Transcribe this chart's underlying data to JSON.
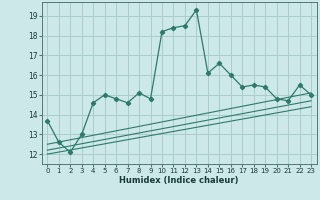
{
  "xlabel": "Humidex (Indice chaleur)",
  "background_color": "#cce8e8",
  "grid_color": "#aacccc",
  "line_color": "#2d7a6a",
  "xlim": [
    -0.5,
    23.5
  ],
  "ylim": [
    11.5,
    19.7
  ],
  "xticks": [
    0,
    1,
    2,
    3,
    4,
    5,
    6,
    7,
    8,
    9,
    10,
    11,
    12,
    13,
    14,
    15,
    16,
    17,
    18,
    19,
    20,
    21,
    22,
    23
  ],
  "yticks": [
    12,
    13,
    14,
    15,
    16,
    17,
    18,
    19
  ],
  "series1_x": [
    0,
    1,
    2,
    3,
    4,
    5,
    6,
    7,
    8,
    9,
    10,
    11,
    12,
    13,
    14,
    15,
    16,
    17,
    18,
    19,
    20,
    21,
    22,
    23
  ],
  "series1_y": [
    13.7,
    12.6,
    12.1,
    13.0,
    14.6,
    15.0,
    14.8,
    14.6,
    15.1,
    14.8,
    18.2,
    18.4,
    18.5,
    19.3,
    16.1,
    16.6,
    16.0,
    15.4,
    15.5,
    15.4,
    14.8,
    14.7,
    15.5,
    15.0
  ],
  "series2_x": [
    0,
    23
  ],
  "series2_y": [
    12.5,
    15.1
  ],
  "series3_x": [
    0,
    23
  ],
  "series3_y": [
    12.2,
    14.7
  ],
  "series4_x": [
    0,
    23
  ],
  "series4_y": [
    12.0,
    14.4
  ]
}
